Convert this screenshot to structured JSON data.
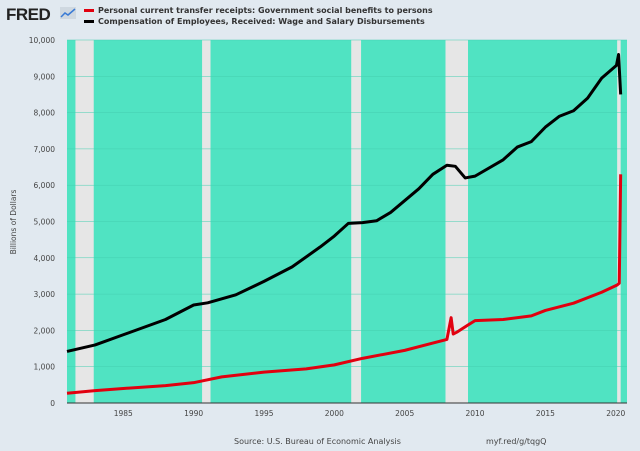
{
  "header": {
    "logo": "FRED",
    "logo_icon": "line-chart-icon"
  },
  "footer": {
    "source": "Source: U.S. Bureau of Economic Analysis",
    "link": "myf.red/g/tqgQ"
  },
  "chart_data": {
    "type": "line",
    "ylabel": "Billions of Dollars",
    "xlabel": "",
    "xlim": [
      1981.0,
      2020.8
    ],
    "ylim": [
      0,
      10000
    ],
    "yticks": [
      0,
      1000,
      2000,
      3000,
      4000,
      5000,
      6000,
      7000,
      8000,
      9000,
      10000
    ],
    "ytick_labels": [
      "0",
      "1,000",
      "2,000",
      "3,000",
      "4,000",
      "5,000",
      "6,000",
      "7,000",
      "8,000",
      "9,000",
      "10,000"
    ],
    "xticks": [
      1985,
      1990,
      1995,
      2000,
      2005,
      2010,
      2015,
      2020
    ],
    "xtick_labels": [
      "1985",
      "1990",
      "1995",
      "2000",
      "2005",
      "2010",
      "2015",
      "2020"
    ],
    "grid": true,
    "legend_placement": "top",
    "plot_background": "#50e3c2",
    "recession_color": "#e6e6e6",
    "recessions": [
      [
        1981.6,
        1982.9
      ],
      [
        1990.6,
        1991.2
      ],
      [
        2001.2,
        2001.9
      ],
      [
        2007.9,
        2009.5
      ],
      [
        2020.1,
        2020.35
      ]
    ],
    "series": [
      {
        "name": "Personal current transfer receipts: Government social benefits to persons",
        "color": "#e1000f",
        "x": [
          1981,
          1983,
          1985,
          1988,
          1990,
          1992,
          1995,
          1998,
          2000,
          2002,
          2005,
          2007,
          2008,
          2008.3,
          2008.45,
          2008.7,
          2009.5,
          2010,
          2012,
          2014,
          2015,
          2017,
          2019,
          2020.1,
          2020.25,
          2020.35
        ],
        "y": [
          270,
          340,
          400,
          480,
          560,
          720,
          850,
          940,
          1050,
          1230,
          1450,
          1650,
          1750,
          2350,
          1900,
          1950,
          2150,
          2270,
          2300,
          2400,
          2550,
          2750,
          3050,
          3250,
          3300,
          6300
        ]
      },
      {
        "name": "Compensation of Employees, Received: Wage and Salary Disbursements",
        "color": "#000000",
        "x": [
          1981,
          1983,
          1985,
          1988,
          1990,
          1991,
          1993,
          1995,
          1997,
          1999,
          2000,
          2001,
          2002,
          2003,
          2004,
          2006,
          2007,
          2008,
          2008.6,
          2009.3,
          2010,
          2012,
          2013,
          2014,
          2015,
          2016,
          2017,
          2018,
          2019,
          2020.05,
          2020.2,
          2020.35
        ],
        "y": [
          1420,
          1600,
          1880,
          2300,
          2700,
          2760,
          2980,
          3350,
          3750,
          4300,
          4600,
          4950,
          4970,
          5020,
          5250,
          5900,
          6300,
          6550,
          6520,
          6200,
          6250,
          6700,
          7050,
          7200,
          7600,
          7900,
          8050,
          8400,
          8950,
          9300,
          9600,
          8500
        ]
      }
    ]
  }
}
